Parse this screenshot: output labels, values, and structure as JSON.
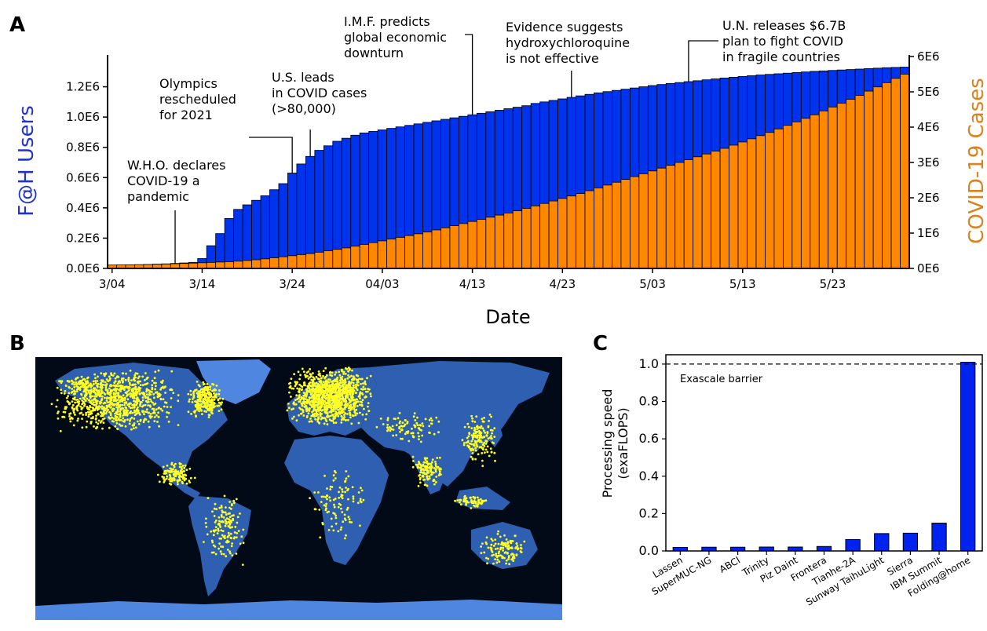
{
  "panels": {
    "a": "A",
    "b": "B",
    "c": "C"
  },
  "colors": {
    "users": "#0033ee",
    "cases": "#ff8800",
    "cases_label": "#d9821e",
    "users_label": "#2233cc",
    "ocean": "#020a18",
    "land": "#2f5fb0",
    "ice": "#4f86e0",
    "dot": "#ffff22",
    "bar_c": "#0022ee"
  },
  "chart_data": [
    {
      "type": "bar",
      "panel": "A",
      "xlabel": "Date",
      "ylabel_left": "F@H Users",
      "ylabel_right": "COVID-19 Cases",
      "x_tick_labels": [
        "3/04",
        "3/14",
        "3/24",
        "04/03",
        "4/13",
        "4/23",
        "5/03",
        "5/13",
        "5/23"
      ],
      "x_tick_day_index": [
        0,
        10,
        20,
        30,
        40,
        50,
        60,
        70,
        80
      ],
      "num_days": 89,
      "y_left_ticks": [
        "0.0E6",
        "0.2E6",
        "0.4E6",
        "0.6E6",
        "0.8E6",
        "1.0E6",
        "1.2E6"
      ],
      "y_left_range": [
        0,
        1400000
      ],
      "y_right_ticks": [
        "0E6",
        "1E6",
        "2E6",
        "3E6",
        "4E6",
        "5E6",
        "6E6"
      ],
      "y_right_range": [
        0,
        6000000
      ],
      "series": [
        {
          "name": "F@H Users",
          "axis": "left",
          "values": [
            18000,
            20000,
            22000,
            24000,
            26000,
            28000,
            30000,
            33000,
            36000,
            40000,
            65000,
            150000,
            230000,
            330000,
            390000,
            420000,
            450000,
            480000,
            520000,
            560000,
            630000,
            690000,
            740000,
            780000,
            810000,
            840000,
            860000,
            880000,
            895000,
            905000,
            915000,
            925000,
            935000,
            945000,
            955000,
            965000,
            975000,
            985000,
            995000,
            1005000,
            1015000,
            1025000,
            1035000,
            1045000,
            1055000,
            1065000,
            1075000,
            1090000,
            1100000,
            1110000,
            1120000,
            1130000,
            1140000,
            1150000,
            1160000,
            1168000,
            1176000,
            1184000,
            1192000,
            1200000,
            1208000,
            1215000,
            1222000,
            1228000,
            1234000,
            1240000,
            1246000,
            1252000,
            1258000,
            1263000,
            1268000,
            1273000,
            1278000,
            1282000,
            1286000,
            1290000,
            1294000,
            1298000,
            1302000,
            1305000,
            1308000,
            1311000,
            1314000,
            1317000,
            1320000,
            1323000,
            1326000,
            1328000,
            1330000
          ]
        },
        {
          "name": "COVID-19 Cases",
          "axis": "right",
          "values": [
            95000,
            98000,
            102000,
            107000,
            112000,
            118000,
            125000,
            133000,
            140000,
            150000,
            160000,
            170000,
            180000,
            190000,
            205000,
            225000,
            245000,
            270000,
            300000,
            330000,
            360000,
            390000,
            420000,
            460000,
            500000,
            540000,
            580000,
            630000,
            680000,
            730000,
            780000,
            830000,
            880000,
            930000,
            980000,
            1030000,
            1090000,
            1150000,
            1210000,
            1270000,
            1330000,
            1390000,
            1450000,
            1510000,
            1570000,
            1630000,
            1700000,
            1770000,
            1840000,
            1910000,
            1980000,
            2050000,
            2120000,
            2200000,
            2280000,
            2360000,
            2440000,
            2520000,
            2600000,
            2680000,
            2760000,
            2840000,
            2920000,
            3000000,
            3080000,
            3160000,
            3240000,
            3320000,
            3400000,
            3490000,
            3580000,
            3670000,
            3760000,
            3850000,
            3950000,
            4050000,
            4150000,
            4250000,
            4350000,
            4460000,
            4570000,
            4680000,
            4790000,
            4900000,
            5020000,
            5140000,
            5260000,
            5380000,
            5500000
          ]
        }
      ],
      "annotations": [
        {
          "lines": [
            "W.H.O. declares",
            "COVID-19 a",
            "pandemic"
          ],
          "day": 7
        },
        {
          "lines": [
            "Olympics",
            "rescheduled",
            "for 2021"
          ],
          "day": 20
        },
        {
          "lines": [
            "U.S. leads",
            "in COVID cases",
            "(>80,000)"
          ],
          "day": 22
        },
        {
          "lines": [
            "I.M.F. predicts",
            "global economic",
            "downturn"
          ],
          "day": 40
        },
        {
          "lines": [
            "Evidence suggests",
            "hydroxychloroquine",
            "is not effective"
          ],
          "day": 51
        },
        {
          "lines": [
            "U.N. releases $6.7B",
            "plan to fight COVID",
            "in fragile countries"
          ],
          "day": 64
        }
      ]
    },
    {
      "type": "bar",
      "panel": "C",
      "ylabel": "Processing speed (exaFLOPS)",
      "ylabel_lines": [
        "Processing speed",
        "(exaFLOPS)"
      ],
      "categories": [
        "Lassen",
        "SuperMUC-NG",
        "ABCI",
        "Trinity",
        "Piz Daint",
        "Frontera",
        "Tianhe-2A",
        "Sunway TaihuLight",
        "Sierra",
        "IBM Summit",
        "Folding@home"
      ],
      "values": [
        0.019,
        0.02,
        0.02,
        0.021,
        0.021,
        0.024,
        0.061,
        0.093,
        0.095,
        0.149,
        1.01
      ],
      "y_ticks": [
        "0.0",
        "0.2",
        "0.4",
        "0.6",
        "0.8",
        "1.0"
      ],
      "ylim": [
        0,
        1.05
      ],
      "reference_line": {
        "value": 1.0,
        "label": "Exascale barrier",
        "style": "dashed"
      }
    }
  ]
}
